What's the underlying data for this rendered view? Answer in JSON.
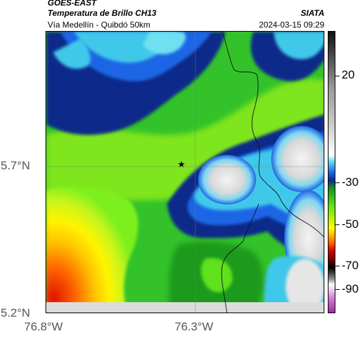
{
  "header": {
    "satellite": "GOES-EAST",
    "product": "Temperatura de Brillo CH13",
    "region": "Vía Medellín - Quibdó 50km",
    "organization": "SIATA",
    "datetime": "2024-03-15 09:29"
  },
  "map": {
    "lat_labels": [
      "5.7°N",
      "5.2°N"
    ],
    "lon_labels": [
      "76.8°W",
      "76.3°W"
    ],
    "marker_icon": "star-icon"
  },
  "colorbar": {
    "tick_labels": [
      "20",
      "-30",
      "-50",
      "-70",
      "-90"
    ],
    "colors": [
      "#9c2f9c",
      "#d37bd3",
      "#ffffff",
      "#8a8a8a",
      "#000000",
      "#7a0000",
      "#d40000",
      "#ff6a00",
      "#ffc400",
      "#ffff00",
      "#d8f500",
      "#5fe11c",
      "#1a9a1a",
      "#0a2a8a",
      "#1f66e6",
      "#3fc8ea",
      "#ffffff",
      "#999999",
      "#111111"
    ]
  }
}
